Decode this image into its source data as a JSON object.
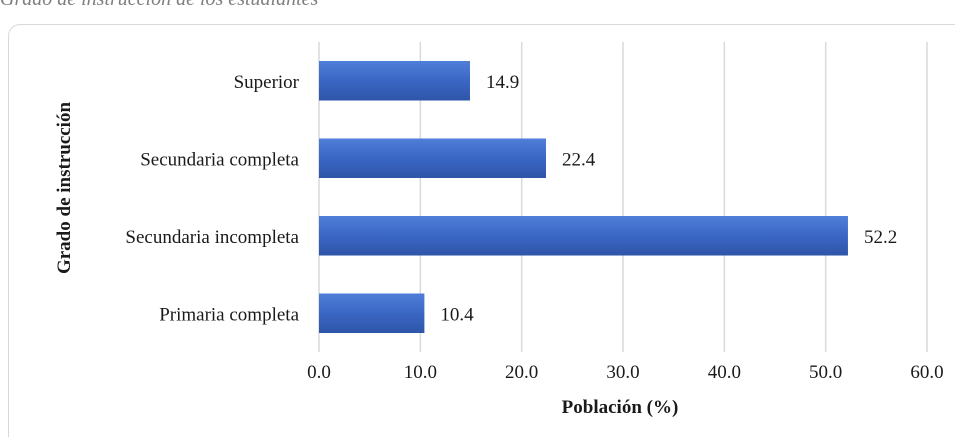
{
  "caption": "Grado de instrucción de los estudiantes",
  "chart_data": {
    "type": "bar",
    "orientation": "horizontal",
    "categories": [
      "Superior",
      "Secundaria completa",
      "Secundaria incompleta",
      "Primaria completa"
    ],
    "values": [
      14.9,
      22.4,
      52.2,
      10.4
    ],
    "xlabel": "Población (%)",
    "ylabel": "Grado de instrucción",
    "xlim": [
      0,
      60
    ],
    "xticks": [
      "0.0",
      "10.0",
      "20.0",
      "30.0",
      "40.0",
      "50.0",
      "60.0"
    ],
    "bar_color": "#3a66c4",
    "grid": true,
    "legend": "none"
  }
}
